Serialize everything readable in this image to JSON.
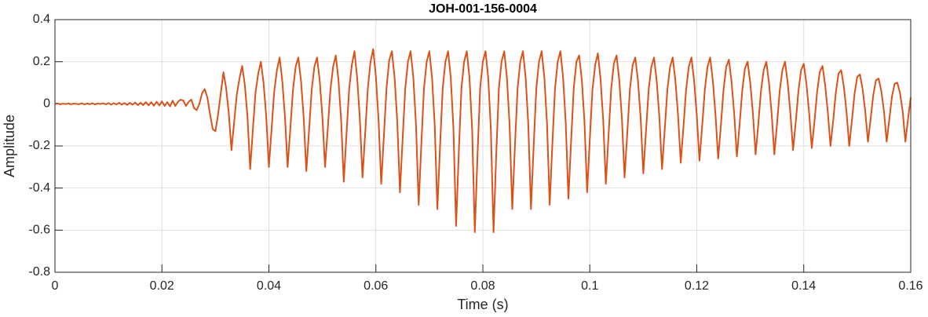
{
  "chart_data": {
    "type": "line",
    "title": "JOH-001-156-0004",
    "xlabel": "Time (s)",
    "ylabel": "Amplitude",
    "color": "#d95319",
    "grid": true,
    "xlim": [
      0,
      0.16
    ],
    "ylim": [
      -0.8,
      0.4
    ],
    "xticks": [
      0,
      0.02,
      0.04,
      0.06,
      0.08,
      0.1,
      0.12,
      0.14,
      0.16
    ],
    "yticks": [
      -0.8,
      -0.6,
      -0.4,
      -0.2,
      0,
      0.2,
      0.4
    ],
    "x": [
      0,
      0.0005,
      0.001,
      0.0015,
      0.002,
      0.0025,
      0.003,
      0.0035,
      0.004,
      0.0045,
      0.005,
      0.0055,
      0.006,
      0.0065,
      0.007,
      0.0075,
      0.008,
      0.0085,
      0.009,
      0.0095,
      0.01,
      0.0105,
      0.011,
      0.0115,
      0.012,
      0.0125,
      0.013,
      0.0135,
      0.014,
      0.0145,
      0.015,
      0.0155,
      0.016,
      0.0165,
      0.017,
      0.0175,
      0.018,
      0.0185,
      0.019,
      0.0195,
      0.02,
      0.0205,
      0.021,
      0.0215,
      0.022,
      0.0225,
      0.023,
      0.0235,
      0.024,
      0.0245,
      0.025,
      0.0255,
      0.026,
      0.0265,
      0.027,
      0.0275,
      0.028,
      0.0285,
      0.029,
      0.0295,
      0.03,
      0.0305,
      0.031,
      0.0315,
      0.032,
      0.0325,
      0.033,
      0.0335,
      0.034,
      0.0345,
      0.035,
      0.0355,
      0.036,
      0.0365,
      0.037,
      0.0375,
      0.038,
      0.0385,
      0.039,
      0.0395,
      0.04,
      0.0405,
      0.041,
      0.0415,
      0.042,
      0.0425,
      0.043,
      0.0435,
      0.044,
      0.0445,
      0.045,
      0.0455,
      0.046,
      0.0465,
      0.047,
      0.0475,
      0.048,
      0.0485,
      0.049,
      0.0495,
      0.05,
      0.0505,
      0.051,
      0.0515,
      0.052,
      0.0525,
      0.053,
      0.0535,
      0.054,
      0.0545,
      0.055,
      0.0555,
      0.056,
      0.0565,
      0.057,
      0.0575,
      0.058,
      0.0585,
      0.059,
      0.0595,
      0.06,
      0.0605,
      0.061,
      0.0615,
      0.062,
      0.0625,
      0.063,
      0.0635,
      0.064,
      0.0645,
      0.065,
      0.0655,
      0.066,
      0.0665,
      0.067,
      0.0675,
      0.068,
      0.0685,
      0.069,
      0.0695,
      0.07,
      0.0705,
      0.071,
      0.0715,
      0.072,
      0.0725,
      0.073,
      0.0735,
      0.074,
      0.0745,
      0.075,
      0.0755,
      0.076,
      0.0765,
      0.077,
      0.0775,
      0.078,
      0.0785,
      0.079,
      0.0795,
      0.08,
      0.0805,
      0.081,
      0.0815,
      0.082,
      0.0825,
      0.083,
      0.0835,
      0.084,
      0.0845,
      0.085,
      0.0855,
      0.086,
      0.0865,
      0.087,
      0.0875,
      0.088,
      0.0885,
      0.089,
      0.0895,
      0.09,
      0.0905,
      0.091,
      0.0915,
      0.092,
      0.0925,
      0.093,
      0.0935,
      0.094,
      0.0945,
      0.095,
      0.0955,
      0.096,
      0.0965,
      0.097,
      0.0975,
      0.098,
      0.0985,
      0.099,
      0.0995,
      0.1,
      0.1005,
      0.101,
      0.1015,
      0.102,
      0.1025,
      0.103,
      0.1035,
      0.104,
      0.1045,
      0.105,
      0.1055,
      0.106,
      0.1065,
      0.107,
      0.1075,
      0.108,
      0.1085,
      0.109,
      0.1095,
      0.11,
      0.1105,
      0.111,
      0.1115,
      0.112,
      0.1125,
      0.113,
      0.1135,
      0.114,
      0.1145,
      0.115,
      0.1155,
      0.116,
      0.1165,
      0.117,
      0.1175,
      0.118,
      0.1185,
      0.119,
      0.1195,
      0.12,
      0.1205,
      0.121,
      0.1215,
      0.122,
      0.1225,
      0.123,
      0.1235,
      0.124,
      0.1245,
      0.125,
      0.1255,
      0.126,
      0.1265,
      0.127,
      0.1275,
      0.128,
      0.1285,
      0.129,
      0.1295,
      0.13,
      0.1305,
      0.131,
      0.1315,
      0.132,
      0.1325,
      0.133,
      0.1335,
      0.134,
      0.1345,
      0.135,
      0.1355,
      0.136,
      0.1365,
      0.137,
      0.1375,
      0.138,
      0.1385,
      0.139,
      0.1395,
      0.14,
      0.1405,
      0.141,
      0.1415,
      0.142,
      0.1425,
      0.143,
      0.1435,
      0.144,
      0.1445,
      0.145,
      0.1455,
      0.146,
      0.1465,
      0.147,
      0.1475,
      0.148,
      0.1485,
      0.149,
      0.1495,
      0.15,
      0.1505,
      0.151,
      0.1515,
      0.152,
      0.1525,
      0.153,
      0.1535,
      0.154,
      0.1545,
      0.155,
      0.1555,
      0.156,
      0.1565,
      0.157,
      0.1575,
      0.158,
      0.1585,
      0.159,
      0.1595,
      0.16
    ],
    "values": [
      0,
      0.002,
      -0.002,
      0.001,
      -0.001,
      0.002,
      -0.002,
      0.001,
      0,
      -0.002,
      0.003,
      -0.003,
      0.002,
      -0.002,
      0.003,
      -0.003,
      0.002,
      -0.001,
      0.003,
      -0.003,
      0.004,
      -0.004,
      0.003,
      -0.003,
      0.005,
      -0.004,
      0.004,
      -0.005,
      0.005,
      -0.004,
      0.006,
      -0.006,
      0.005,
      -0.006,
      0.008,
      -0.007,
      0.008,
      -0.009,
      0.01,
      -0.008,
      0.012,
      -0.01,
      0.008,
      -0.012,
      0.015,
      -0.01,
      0.01,
      0.02,
      0.015,
      -0.01,
      0.01,
      0.02,
      -0.02,
      -0.03,
      0,
      0.05,
      0.07,
      0.03,
      -0.05,
      -0.12,
      -0.13,
      -0.05,
      0.05,
      0.15,
      0.075,
      -0.044,
      -0.22,
      -0.088,
      0.045,
      0.12,
      0.18,
      0.09,
      -0.062,
      -0.31,
      -0.124,
      0.054,
      0.144,
      0.2,
      0.1,
      -0.06,
      -0.3,
      -0.12,
      0.06,
      0.16,
      0.22,
      0.11,
      -0.06,
      -0.3,
      -0.12,
      0.066,
      0.176,
      0.22,
      0.11,
      -0.064,
      -0.32,
      -0.128,
      0.066,
      0.176,
      0.22,
      0.11,
      -0.06,
      -0.3,
      -0.12,
      0.066,
      0.176,
      0.23,
      0.115,
      -0.074,
      -0.37,
      -0.148,
      0.069,
      0.184,
      0.25,
      0.125,
      -0.07,
      -0.35,
      -0.14,
      0.075,
      0.2,
      0.26,
      0.13,
      -0.076,
      -0.38,
      -0.152,
      0.078,
      0.208,
      0.25,
      0.125,
      -0.084,
      -0.42,
      -0.168,
      0.075,
      0.2,
      0.25,
      0.125,
      -0.096,
      -0.48,
      -0.192,
      0.075,
      0.2,
      0.25,
      0.125,
      -0.1,
      -0.5,
      -0.2,
      0.075,
      0.2,
      0.25,
      0.125,
      -0.116,
      -0.58,
      -0.232,
      0.075,
      0.2,
      0.25,
      0.125,
      -0.122,
      -0.61,
      -0.244,
      0.075,
      0.2,
      0.25,
      0.125,
      -0.122,
      -0.61,
      -0.244,
      0.075,
      0.2,
      0.25,
      0.125,
      -0.1,
      -0.5,
      -0.2,
      0.075,
      0.2,
      0.25,
      0.125,
      -0.1,
      -0.5,
      -0.2,
      0.075,
      0.2,
      0.25,
      0.125,
      -0.096,
      -0.48,
      -0.192,
      0.075,
      0.2,
      0.25,
      0.125,
      -0.09,
      -0.45,
      -0.18,
      0.075,
      0.2,
      0.23,
      0.115,
      -0.084,
      -0.42,
      -0.168,
      0.069,
      0.184,
      0.24,
      0.12,
      -0.076,
      -0.38,
      -0.152,
      0.072,
      0.192,
      0.23,
      0.115,
      -0.07,
      -0.35,
      -0.14,
      0.069,
      0.184,
      0.22,
      0.11,
      -0.066,
      -0.33,
      -0.132,
      0.066,
      0.176,
      0.22,
      0.11,
      -0.062,
      -0.31,
      -0.124,
      0.066,
      0.176,
      0.22,
      0.11,
      -0.056,
      -0.28,
      -0.112,
      0.066,
      0.176,
      0.22,
      0.11,
      -0.054,
      -0.27,
      -0.108,
      0.066,
      0.176,
      0.22,
      0.11,
      -0.052,
      -0.26,
      -0.104,
      0.066,
      0.176,
      0.21,
      0.105,
      -0.05,
      -0.25,
      -0.1,
      0.063,
      0.168,
      0.2,
      0.1,
      -0.048,
      -0.24,
      -0.096,
      0.06,
      0.16,
      0.2,
      0.1,
      -0.048,
      -0.24,
      -0.096,
      0.06,
      0.16,
      0.2,
      0.1,
      -0.044,
      -0.22,
      -0.088,
      0.06,
      0.16,
      0.19,
      0.095,
      -0.042,
      -0.21,
      -0.084,
      0.057,
      0.152,
      0.18,
      0.09,
      -0.04,
      -0.2,
      -0.08,
      0.054,
      0.144,
      0.16,
      0.08,
      -0.04,
      -0.2,
      -0.08,
      0.048,
      0.128,
      0.14,
      0.07,
      -0.036,
      -0.18,
      -0.072,
      0.042,
      0.112,
      0.12,
      0.06,
      -0.036,
      -0.18,
      -0.072,
      0.036,
      0.096,
      0.1,
      0.05,
      -0.036,
      -0.18,
      -0.072,
      0.03
    ]
  }
}
